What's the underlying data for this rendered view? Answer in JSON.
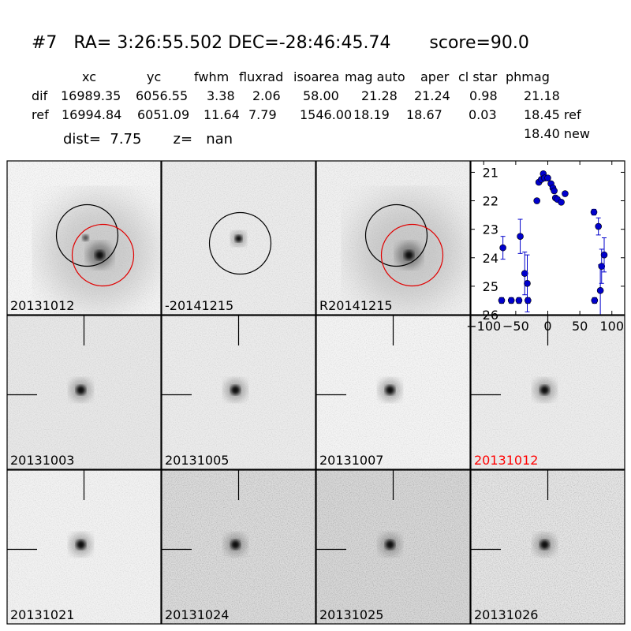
{
  "header": {
    "title": "#7   RA= 3:26:55.502 DEC=-28:46:45.74       score=90.0",
    "columns": [
      "xc",
      "yc",
      "fwhm",
      "fluxrad",
      "isoarea",
      "mag auto",
      "aper",
      "cl star",
      "phmag"
    ],
    "rows": [
      {
        "label": "dif",
        "values": [
          "16989.35",
          "6056.55",
          "3.38",
          "2.06",
          "58.00",
          "21.28",
          "21.24",
          "0.98",
          "21.18"
        ]
      },
      {
        "label": "ref",
        "values": [
          "16994.84",
          "6051.09",
          "11.64",
          "7.79",
          "1546.00",
          "18.19",
          "18.67",
          "0.03",
          "18.45 ref"
        ]
      }
    ],
    "extra_phmag": "18.40 new",
    "dist_line": "dist=  7.75       z=   nan"
  },
  "stamps": [
    {
      "label": "20131012",
      "kind": "galaxy",
      "circles": [
        "black",
        "red"
      ],
      "label_color": "#000000"
    },
    {
      "label": "-20141215",
      "kind": "diff",
      "circles": [
        "black"
      ],
      "label_color": "#000000"
    },
    {
      "label": "R20141215",
      "kind": "galaxy",
      "circles": [
        "black",
        "red"
      ],
      "label_color": "#000000"
    },
    {
      "label": "20131003",
      "kind": "point",
      "label_color": "#000000"
    },
    {
      "label": "20131005",
      "kind": "point",
      "label_color": "#000000"
    },
    {
      "label": "20131007",
      "kind": "point",
      "label_color": "#000000"
    },
    {
      "label": "20131012",
      "kind": "point",
      "label_color": "#ff0000"
    },
    {
      "label": "20131021",
      "kind": "point",
      "label_color": "#000000"
    },
    {
      "label": "20131024",
      "kind": "point",
      "label_color": "#000000"
    },
    {
      "label": "20131025",
      "kind": "point",
      "label_color": "#000000"
    },
    {
      "label": "20131026",
      "kind": "point",
      "label_color": "#000000"
    }
  ],
  "chart_data": {
    "type": "scatter",
    "title": "",
    "xlabel": "",
    "ylabel": "",
    "xlim": [
      -120,
      120
    ],
    "ylim": [
      26,
      20.6
    ],
    "inverted_y": true,
    "xticks": [
      -100,
      -50,
      0,
      50,
      100
    ],
    "xtick_labels": [
      "−100",
      "−50",
      "0",
      "50",
      "100"
    ],
    "yticks": [
      21,
      22,
      23,
      24,
      25,
      26
    ],
    "yticks_labels": [
      "21",
      "22",
      "23",
      "24",
      "25",
      "26"
    ],
    "marker_color": "#0000cc",
    "points": [
      {
        "x": -72,
        "y": 25.5,
        "err": 0.1
      },
      {
        "x": -70,
        "y": 23.65,
        "err": 0.4
      },
      {
        "x": -57,
        "y": 25.5,
        "err": 0.1
      },
      {
        "x": -45,
        "y": 25.5,
        "err": 0.1
      },
      {
        "x": -43,
        "y": 23.25,
        "err": 0.6
      },
      {
        "x": -36,
        "y": 24.55,
        "err": 0.75
      },
      {
        "x": -32,
        "y": 24.9,
        "err": 1.0
      },
      {
        "x": -31,
        "y": 25.5,
        "err": 0.1
      },
      {
        "x": -17,
        "y": 22.0,
        "err": 0.05
      },
      {
        "x": -14,
        "y": 21.35,
        "err": 0.05
      },
      {
        "x": -10,
        "y": 21.25,
        "err": 0.05
      },
      {
        "x": -7,
        "y": 21.05,
        "err": 0.05
      },
      {
        "x": -5,
        "y": 21.2,
        "err": 0.05
      },
      {
        "x": 0,
        "y": 21.2,
        "err": 0.05
      },
      {
        "x": 5,
        "y": 21.4,
        "err": 0.05
      },
      {
        "x": 8,
        "y": 21.55,
        "err": 0.05
      },
      {
        "x": 10,
        "y": 21.65,
        "err": 0.05
      },
      {
        "x": 12,
        "y": 21.9,
        "err": 0.05
      },
      {
        "x": 15,
        "y": 21.95,
        "err": 0.05
      },
      {
        "x": 21,
        "y": 22.05,
        "err": 0.05
      },
      {
        "x": 27,
        "y": 21.75,
        "err": 0.05
      },
      {
        "x": 72,
        "y": 22.4,
        "err": 0.1
      },
      {
        "x": 73,
        "y": 25.5,
        "err": 0.1
      },
      {
        "x": 79,
        "y": 22.9,
        "err": 0.3
      },
      {
        "x": 82,
        "y": 25.15,
        "err": 0.9
      },
      {
        "x": 84,
        "y": 24.3,
        "err": 0.6
      },
      {
        "x": 88,
        "y": 23.9,
        "err": 0.6
      }
    ]
  }
}
